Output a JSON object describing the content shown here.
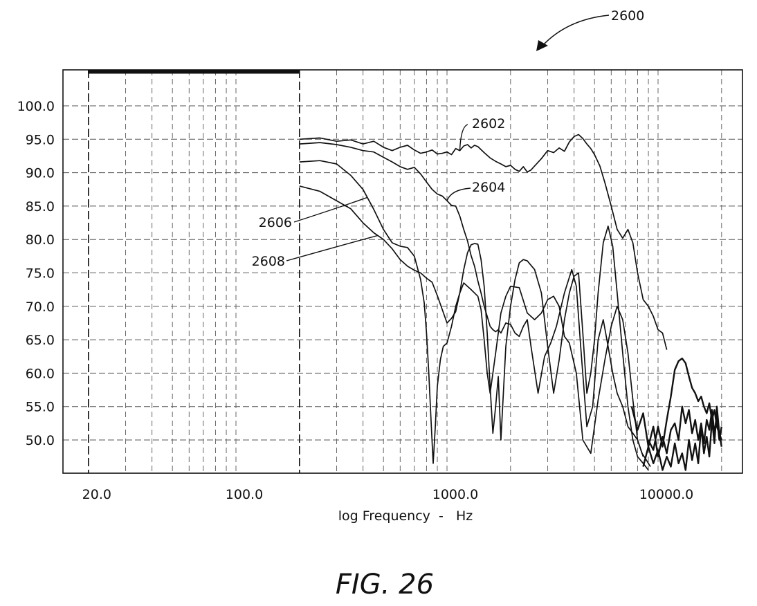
{
  "figure": {
    "ref_number": "2600",
    "fig_label": "FIG. 26"
  },
  "chart_data": {
    "type": "line",
    "x_scale": "log",
    "xlabel": "log Frequency  -   Hz",
    "ylabel": "",
    "xlim": [
      16,
      20000
    ],
    "ylim": [
      45,
      105
    ],
    "x_tick_labels": [
      {
        "value": 20,
        "label": "20.0"
      },
      {
        "value": 100,
        "label": "100.0"
      },
      {
        "value": 1000,
        "label": "1000.0"
      },
      {
        "value": 10000,
        "label": "10000.0"
      }
    ],
    "y_tick_labels": [
      {
        "value": 100,
        "label": "100.0"
      },
      {
        "value": 95,
        "label": "95.0"
      },
      {
        "value": 90,
        "label": "90.0"
      },
      {
        "value": 85,
        "label": "85.0"
      },
      {
        "value": 80,
        "label": "80.0"
      },
      {
        "value": 75,
        "label": "75.0"
      },
      {
        "value": 70,
        "label": "70.0"
      },
      {
        "value": 65,
        "label": "65.0"
      },
      {
        "value": 60,
        "label": "60.0"
      },
      {
        "value": 55,
        "label": "55.0"
      },
      {
        "value": 50,
        "label": "50.0"
      }
    ],
    "x_gridlines_major": [
      20,
      200
    ],
    "x_gridlines": [
      30,
      40,
      50,
      60,
      70,
      80,
      90,
      100,
      300,
      400,
      500,
      600,
      700,
      800,
      900,
      1000,
      2000,
      3000,
      4000,
      5000,
      6000,
      7000,
      8000,
      9000,
      10000,
      20000
    ],
    "y_gridlines": [
      50,
      55,
      60,
      65,
      70,
      75,
      80,
      85,
      90,
      95,
      100
    ],
    "band": {
      "x_start": 20,
      "x_end": 200,
      "y": 105
    },
    "grid": true,
    "series": [
      {
        "name": "2602",
        "x": [
          200,
          250,
          300,
          350,
          400,
          450,
          500,
          550,
          600,
          650,
          700,
          750,
          800,
          850,
          900,
          950,
          1000,
          1050,
          1100,
          1150,
          1200,
          1250,
          1300,
          1350,
          1400,
          1500,
          1600,
          1700,
          1800,
          1900,
          2000,
          2100,
          2200,
          2300,
          2400,
          2500,
          2600,
          2800,
          3000,
          3200,
          3400,
          3600,
          3800,
          4000,
          4200,
          4400,
          4600,
          4800,
          5000,
          5300,
          5600,
          6000,
          6400,
          6800,
          7200,
          7600,
          8000,
          8500,
          9000,
          9500,
          10000,
          10500,
          11000
        ],
        "y": [
          95.0,
          95.2,
          94.7,
          94.9,
          94.3,
          94.7,
          93.8,
          93.3,
          93.8,
          94.1,
          93.4,
          92.9,
          93.1,
          93.4,
          92.8,
          92.9,
          93.1,
          92.7,
          93.6,
          93.3,
          94.0,
          94.2,
          93.7,
          94.1,
          93.9,
          93.0,
          92.2,
          91.7,
          91.3,
          90.9,
          91.1,
          90.5,
          90.2,
          90.9,
          90.1,
          90.4,
          91.0,
          92.1,
          93.3,
          93.0,
          93.7,
          93.2,
          94.6,
          95.4,
          95.7,
          95.1,
          94.3,
          93.6,
          92.7,
          91.0,
          88.5,
          85.0,
          81.5,
          80.2,
          81.5,
          79.5,
          75.0,
          71.0,
          70.0,
          68.5,
          66.5,
          66.0,
          63.5
        ]
      },
      {
        "name": "2604",
        "x": [
          200,
          250,
          300,
          350,
          400,
          450,
          500,
          550,
          600,
          650,
          700,
          750,
          800,
          850,
          900,
          950,
          1000,
          1050,
          1100,
          1150,
          1200,
          1250,
          1300,
          1350,
          1400,
          1450,
          1500,
          1550,
          1600,
          1650,
          1700,
          1750,
          1800,
          1900,
          2000,
          2100,
          2200,
          2300,
          2400,
          2500,
          2700,
          2900,
          3100,
          3300,
          3600,
          3900,
          4100,
          4300,
          4600,
          4900,
          5200,
          5500,
          5800,
          6100,
          6400,
          6800,
          7200,
          7600,
          8000,
          8400,
          8800,
          9200
        ],
        "y": [
          94.3,
          94.5,
          94.2,
          93.8,
          93.3,
          93.1,
          92.3,
          91.6,
          90.9,
          90.5,
          90.8,
          89.8,
          88.6,
          87.5,
          86.8,
          86.5,
          85.8,
          85.1,
          85.0,
          83.5,
          81.5,
          79.8,
          77.6,
          76.0,
          73.8,
          72.0,
          70.0,
          68.5,
          67.0,
          66.5,
          66.2,
          66.5,
          66.0,
          67.5,
          67.3,
          66.0,
          65.5,
          67.0,
          68.0,
          64.0,
          57.0,
          62.5,
          64.5,
          67.0,
          72.0,
          75.5,
          73.0,
          64.0,
          52.0,
          55.0,
          65.0,
          68.0,
          64.0,
          60.0,
          57.0,
          55.0,
          52.0,
          51.0,
          50.0,
          48.0,
          47.0,
          46.0
        ]
      },
      {
        "name": "2606",
        "x": [
          200,
          250,
          300,
          350,
          400,
          450,
          500,
          550,
          600,
          650,
          700,
          750,
          780,
          800,
          820,
          840,
          860,
          880,
          900,
          930,
          960,
          1000,
          1050,
          1100,
          1150,
          1200,
          1300,
          1400,
          1450,
          1500,
          1550,
          1600,
          1650,
          1700,
          1750,
          1800,
          1900,
          2000,
          2200,
          2400,
          2600,
          2800,
          3000,
          3200,
          3400,
          3600,
          3800,
          4100,
          4400,
          4800,
          5200,
          5600,
          6000,
          6400,
          6800,
          7200,
          7600,
          8000,
          8500
        ],
        "y": [
          91.6,
          91.8,
          91.3,
          89.6,
          87.5,
          84.5,
          81.5,
          79.5,
          79.0,
          78.8,
          77.5,
          74.0,
          70.5,
          66.0,
          60.0,
          53.0,
          46.5,
          52.0,
          58.0,
          62.0,
          64.0,
          64.5,
          67.0,
          70.0,
          72.0,
          73.5,
          72.5,
          71.5,
          69.5,
          65.0,
          60.0,
          57.0,
          60.0,
          63.0,
          66.0,
          69.0,
          71.5,
          73.0,
          72.8,
          69.0,
          68.0,
          69.0,
          71.0,
          71.5,
          70.0,
          65.5,
          64.5,
          60.0,
          50.0,
          48.0,
          56.0,
          62.0,
          67.0,
          70.0,
          68.0,
          63.0,
          56.0,
          50.0,
          47.5
        ]
      },
      {
        "name": "2608",
        "x": [
          200,
          250,
          300,
          350,
          400,
          450,
          500,
          550,
          600,
          650,
          700,
          750,
          800,
          850,
          900,
          950,
          1000,
          1050,
          1100,
          1150,
          1200,
          1250,
          1300,
          1350,
          1400,
          1450,
          1500,
          1550,
          1600,
          1650,
          1700,
          1750,
          1800,
          1900,
          2000,
          2100,
          2200,
          2300,
          2400,
          2600,
          2800,
          3000,
          3200,
          3400,
          3600,
          3800,
          4000,
          4200,
          4400,
          4600,
          4800,
          5000,
          5200,
          5500,
          5800,
          6100,
          6400,
          6800,
          7200,
          7600,
          8000,
          8500,
          9000
        ],
        "y": [
          88.0,
          87.2,
          85.8,
          84.6,
          82.5,
          81.0,
          80.0,
          78.6,
          77.0,
          76.0,
          75.4,
          75.0,
          74.2,
          73.6,
          71.6,
          69.5,
          67.5,
          68.2,
          69.2,
          72.0,
          75.5,
          78.0,
          79.2,
          79.4,
          79.3,
          77.0,
          73.0,
          66.0,
          58.0,
          51.0,
          55.0,
          59.5,
          50.0,
          64.0,
          70.0,
          74.0,
          76.5,
          77.0,
          76.8,
          75.5,
          72.0,
          64.0,
          57.0,
          62.0,
          68.0,
          72.0,
          74.5,
          75.0,
          66.0,
          57.0,
          60.0,
          65.0,
          72.0,
          79.5,
          82.0,
          79.0,
          72.0,
          63.0,
          55.0,
          50.0,
          47.5,
          46.5,
          45.5
        ]
      },
      {
        "name": "",
        "x": [
          9000,
          9500,
          10000,
          10500,
          11000,
          11500,
          12000,
          12500,
          13000,
          13500,
          14000,
          14500,
          15000,
          15500,
          16000,
          16500,
          17000,
          17500,
          18000,
          18500,
          19000,
          19500,
          20000
        ],
        "y": [
          50.0,
          48.5,
          52.0,
          49.0,
          53.0,
          56.5,
          60.5,
          61.8,
          62.2,
          61.5,
          59.5,
          57.8,
          57.0,
          55.8,
          56.5,
          55.0,
          54.0,
          55.5,
          53.0,
          54.5,
          52.0,
          51.0,
          50.0
        ]
      },
      {
        "name": "",
        "x": [
          7500,
          8000,
          8500,
          9000,
          9500,
          10000,
          10500,
          11000,
          11500,
          12000,
          12500,
          13000,
          13500,
          14000,
          14500,
          15000,
          15500,
          16000,
          16500,
          17000,
          17500,
          18000,
          18500,
          19000,
          19500,
          20000
        ],
        "y": [
          55.0,
          51.5,
          54.0,
          49.0,
          52.0,
          47.5,
          50.5,
          48.0,
          51.5,
          52.5,
          50.0,
          55.0,
          52.5,
          54.5,
          51.0,
          53.0,
          50.0,
          52.5,
          49.5,
          53.0,
          51.5,
          54.5,
          51.0,
          53.5,
          50.0,
          52.0
        ]
      },
      {
        "name": "",
        "x": [
          8500,
          9000,
          9500,
          10000,
          10500,
          11000,
          11500,
          12000,
          12500,
          13000,
          13500,
          14000,
          14500,
          15000,
          15500,
          16000,
          16500,
          17000,
          17500,
          18000,
          18500,
          19000,
          19500,
          20000
        ],
        "y": [
          46.0,
          49.0,
          46.5,
          48.5,
          45.5,
          47.5,
          46.0,
          49.5,
          46.5,
          48.0,
          45.5,
          50.0,
          47.0,
          49.5,
          46.5,
          52.0,
          48.0,
          50.5,
          47.5,
          53.0,
          49.5,
          55.0,
          51.0,
          49.0
        ]
      }
    ],
    "annotations": [
      {
        "text": "2602",
        "series": "2602",
        "at_x": 1150
      },
      {
        "text": "2604",
        "series": "2604",
        "at_x": 1000
      },
      {
        "text": "2606",
        "series": "2606",
        "at_x": 420
      },
      {
        "text": "2608",
        "series": "2608",
        "at_x": 470
      }
    ]
  }
}
